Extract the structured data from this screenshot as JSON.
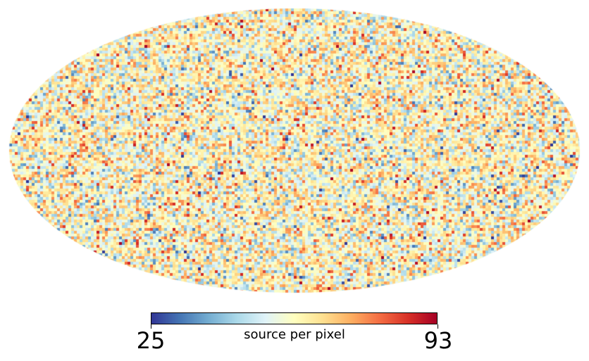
{
  "map": {
    "projection": "mollweide",
    "colormap": "RdYlBu_r",
    "colormap_stops": [
      "#313695",
      "#4575b4",
      "#74add1",
      "#abd9e9",
      "#e0f3f8",
      "#ffffbf",
      "#fee090",
      "#fdae61",
      "#f46d43",
      "#d73027",
      "#a50026"
    ],
    "background": "#ffffff"
  },
  "colorbar": {
    "min": 25,
    "max": 93,
    "min_label": "25",
    "max_label": "93",
    "label": "source per pixel",
    "orientation": "horizontal"
  }
}
